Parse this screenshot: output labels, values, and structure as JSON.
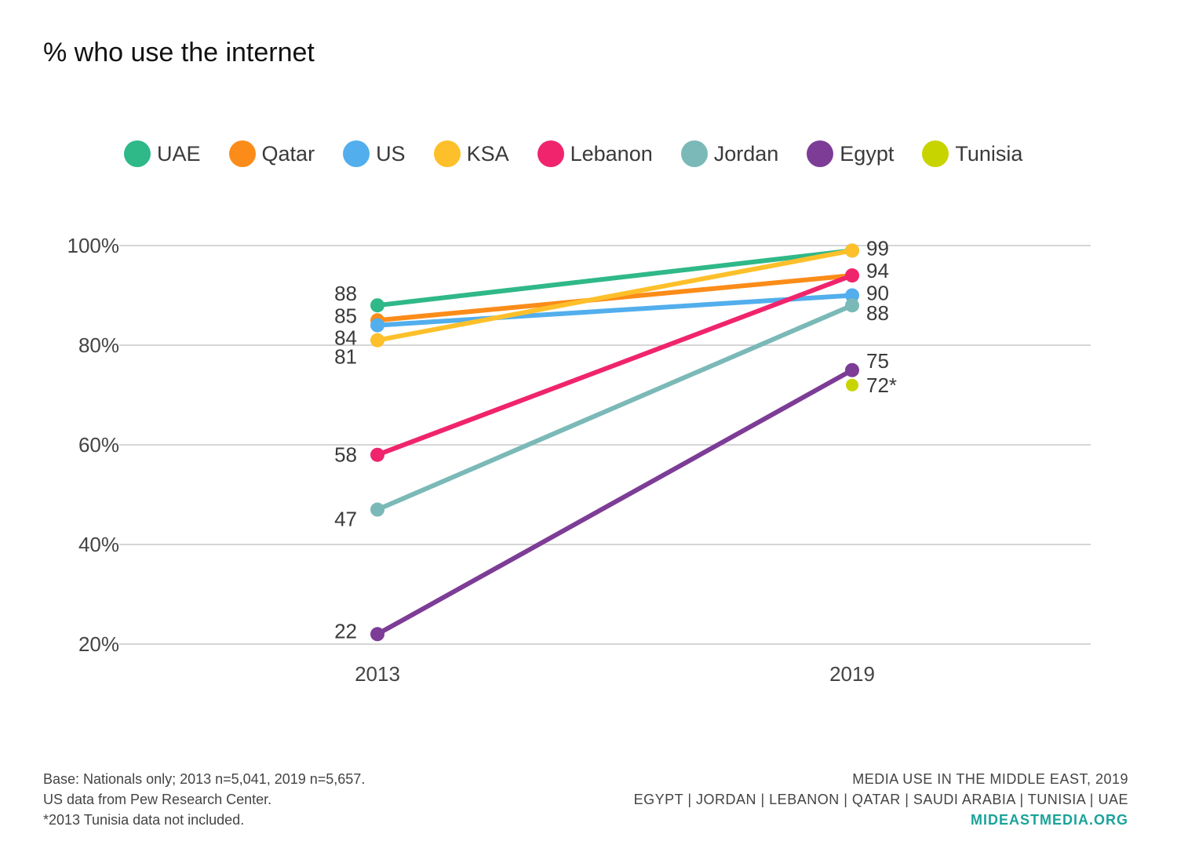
{
  "chart_data": {
    "type": "line",
    "title": "% who use the internet",
    "x": [
      "2013",
      "2019"
    ],
    "yticks": [
      "100%",
      "80%",
      "60%",
      "40%",
      "20%"
    ],
    "ytick_values": [
      100,
      80,
      60,
      40,
      20
    ],
    "ylim": [
      20,
      100
    ],
    "grid": true,
    "legend_position": "top",
    "series": [
      {
        "name": "UAE",
        "color": "#2fb888",
        "values": [
          88,
          99
        ],
        "labels": [
          "88",
          ""
        ]
      },
      {
        "name": "Qatar",
        "color": "#fb8c19",
        "values": [
          85,
          94
        ],
        "labels": [
          "85",
          ""
        ]
      },
      {
        "name": "US",
        "color": "#52aeec",
        "values": [
          84,
          90
        ],
        "labels": [
          "84",
          "90"
        ]
      },
      {
        "name": "KSA",
        "color": "#fdc02a",
        "values": [
          81,
          99
        ],
        "labels": [
          "81",
          "99"
        ]
      },
      {
        "name": "Lebanon",
        "color": "#f0246c",
        "values": [
          58,
          94
        ],
        "labels": [
          "58",
          "94"
        ]
      },
      {
        "name": "Jordan",
        "color": "#7ab9b7",
        "values": [
          47,
          88
        ],
        "labels": [
          "47",
          "88"
        ]
      },
      {
        "name": "Egypt",
        "color": "#7d3c96",
        "values": [
          22,
          75
        ],
        "labels": [
          "22",
          "75"
        ]
      },
      {
        "name": "Tunisia",
        "color": "#c8d400",
        "values": [
          null,
          72
        ],
        "labels": [
          "",
          "72*"
        ]
      }
    ]
  },
  "footer": {
    "notes": [
      "Base: Nationals only; 2013 n=5,041, 2019 n=5,657.",
      "US data from Pew Research Center.",
      "*2013 Tunisia data not included."
    ],
    "source_title": "MEDIA USE IN THE MIDDLE EAST, 2019",
    "countries": "EGYPT | JORDAN | LEBANON | QATAR | SAUDI ARABIA | TUNISIA | UAE",
    "site": "MIDEASTMEDIA.ORG"
  }
}
